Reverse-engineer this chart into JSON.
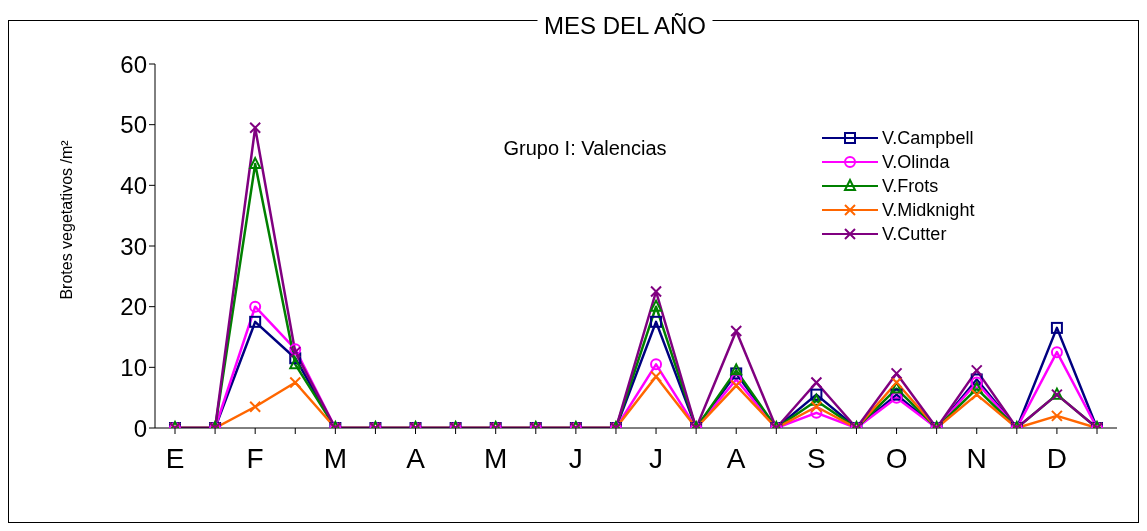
{
  "chart_data": {
    "type": "line",
    "title": "MES DEL AÑO",
    "ylabel": "Brotes vegetativos /m²",
    "annotations": [
      "Grupo I: Valencias"
    ],
    "categories": [
      "E",
      null,
      "F",
      null,
      "M",
      null,
      "A",
      null,
      "M",
      null,
      "J",
      null,
      "J",
      null,
      "A",
      null,
      "S",
      null,
      "O",
      null,
      "N",
      null,
      "D",
      null
    ],
    "ylim": [
      0,
      60
    ],
    "yticks": [
      0,
      10,
      20,
      30,
      40,
      50,
      60
    ],
    "grid": false,
    "legend": "top right",
    "series": [
      {
        "name": "V.Campbell",
        "color": "#000080",
        "marker": "square",
        "values": [
          0,
          0,
          17.5,
          11.5,
          0,
          0,
          0,
          0,
          0,
          0,
          0,
          0,
          17.5,
          0,
          9,
          0,
          5.5,
          0,
          5.5,
          0,
          8,
          0,
          16.5,
          0
        ]
      },
      {
        "name": "V.Olinda",
        "color": "#ff00ff",
        "marker": "circle",
        "values": [
          0,
          0,
          20,
          13,
          0,
          0,
          0,
          0,
          0,
          0,
          0,
          0,
          10.5,
          0,
          8,
          0,
          2.5,
          0,
          5,
          0,
          7.5,
          0,
          12.5,
          0
        ]
      },
      {
        "name": "V.Frots",
        "color": "#008000",
        "marker": "triangle",
        "values": [
          0,
          0,
          43.5,
          10.5,
          0,
          0,
          0,
          0,
          0,
          0,
          0,
          0,
          20,
          0,
          9.5,
          0,
          4.5,
          0,
          6.5,
          0,
          6.5,
          0,
          5.5,
          0
        ]
      },
      {
        "name": "V.Midknight",
        "color": "#ff6600",
        "marker": "cross",
        "values": [
          0,
          0,
          3.5,
          7.5,
          0,
          0,
          0,
          0,
          0,
          0,
          0,
          0,
          8.5,
          0,
          7,
          0,
          3.5,
          0,
          7.5,
          0,
          5.5,
          0,
          2,
          0
        ]
      },
      {
        "name": "V.Cutter",
        "color": "#800080",
        "marker": "cross",
        "values": [
          0,
          0,
          49.5,
          12.5,
          0,
          0,
          0,
          0,
          0,
          0,
          0,
          0,
          22.5,
          0,
          16,
          0,
          7.5,
          0,
          9,
          0,
          9.5,
          0,
          5.5,
          0
        ]
      }
    ]
  }
}
